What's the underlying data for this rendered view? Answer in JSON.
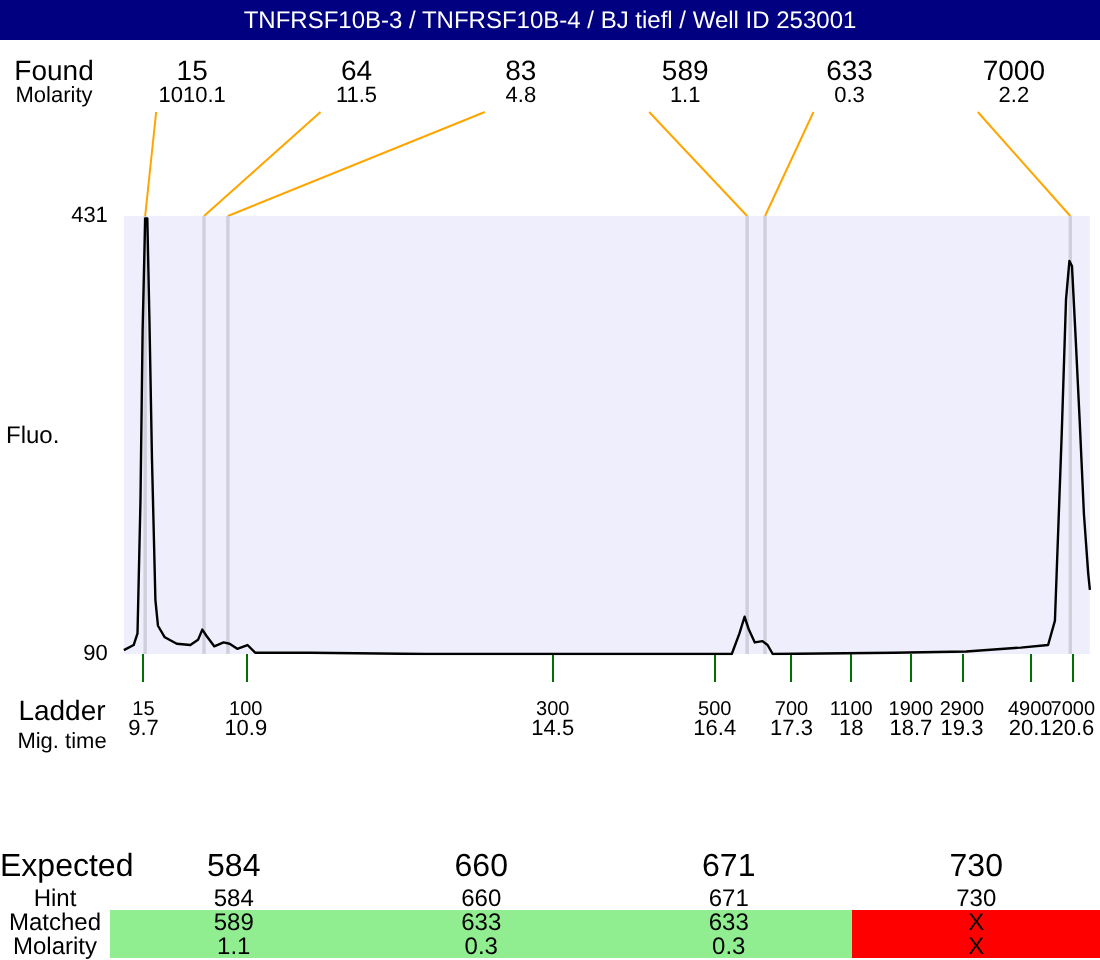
{
  "chart_data": [
    {
      "type": "line",
      "title": "TNFRSF10B-3 / TNFRSF10B-4 / BJ tiefl / Well ID 253001",
      "ylabel": "Fluo.",
      "xlabel": "Mig. time",
      "grid": false,
      "marker": "none",
      "series": [
        {
          "color": "#000000",
          "x": [
            9.47,
            9.585,
            9.63,
            9.665,
            9.69,
            9.72,
            9.745,
            9.77,
            9.8,
            9.84,
            9.87,
            9.95,
            10.09,
            10.25,
            10.34,
            10.39,
            10.44,
            10.53,
            10.64,
            10.71,
            10.8,
            10.92,
            11.01,
            11.65,
            13.0,
            15.0,
            16.6,
            16.69,
            16.75,
            16.8,
            16.87,
            16.96,
            17.02,
            17.08,
            18.5,
            19.35,
            19.99,
            20.31,
            20.39,
            20.47,
            20.52,
            20.56,
            20.59,
            20.63,
            20.68,
            20.73,
            20.78,
            20.8
          ],
          "values": [
            93,
            97,
            106,
            210,
            342,
            429,
            429,
            350,
            241,
            132,
            112,
            103,
            98,
            97,
            101,
            109,
            104,
            96,
            99,
            98,
            94,
            97,
            91,
            91,
            90,
            90,
            90,
            106,
            119,
            109,
            99,
            100,
            97,
            90,
            91,
            92,
            95,
            97,
            116,
            262,
            366,
            396,
            392,
            340,
            272,
            199,
            153,
            140
          ]
        }
      ],
      "xlim": [
        9.47,
        20.8
      ],
      "xticks": [
        9.7,
        10.9,
        14.5,
        16.4,
        17.3,
        18,
        18.7,
        19.3,
        20.1,
        20.6
      ],
      "ylim": [
        90,
        431
      ],
      "yticks": [
        90,
        431
      ],
      "bands": [
        {
          "axis": "x",
          "from": 9.7,
          "to": 9.74,
          "label": "15",
          "color": "#d0d0dc"
        },
        {
          "axis": "x",
          "from": 10.39,
          "to": 10.43,
          "label": "64",
          "color": "#d0d0dc"
        },
        {
          "axis": "x",
          "from": 10.67,
          "to": 10.71,
          "label": "83",
          "color": "#d0d0dc"
        },
        {
          "axis": "x",
          "from": 16.76,
          "to": 16.8,
          "label": "589",
          "color": "#d0d0dc"
        },
        {
          "axis": "x",
          "from": 16.97,
          "to": 17.01,
          "label": "633",
          "color": "#d0d0dc"
        },
        {
          "axis": "x",
          "from": 20.55,
          "to": 20.59,
          "label": "7000",
          "color": "#d0d0dc"
        }
      ],
      "annotations": [
        "Found",
        "Molarity",
        "Ladder",
        "15",
        "100",
        "300",
        "500",
        "700",
        "1100",
        "1900",
        "2900",
        "4900",
        "7000",
        {
          "text": "1010.1",
          "x": 9.72,
          "y": 431
        },
        {
          "text": "11.5",
          "x": 10.41,
          "y": 431
        },
        {
          "text": "4.8",
          "x": 10.69,
          "y": 431
        },
        {
          "text": "1.1",
          "x": 16.78,
          "y": 431
        },
        {
          "text": "0.3",
          "x": 16.99,
          "y": 431
        },
        {
          "text": "2.2",
          "x": 20.57,
          "y": 431
        }
      ]
    },
    {
      "type": "other",
      "y_categories": [
        "Expected",
        "Hint",
        "Matched",
        "Molarity"
      ],
      "cell_labels": [
        [
          "584",
          "660",
          "671",
          "730"
        ],
        [
          "584",
          "660",
          "671",
          "730"
        ],
        [
          "589",
          "633",
          "633",
          "X"
        ],
        [
          "1.1",
          "0.3",
          "0.3",
          "X"
        ]
      ],
      "colors": [
        "#90ee90",
        "#90ee90",
        "#90ee90",
        "#ff0000"
      ]
    }
  ]
}
